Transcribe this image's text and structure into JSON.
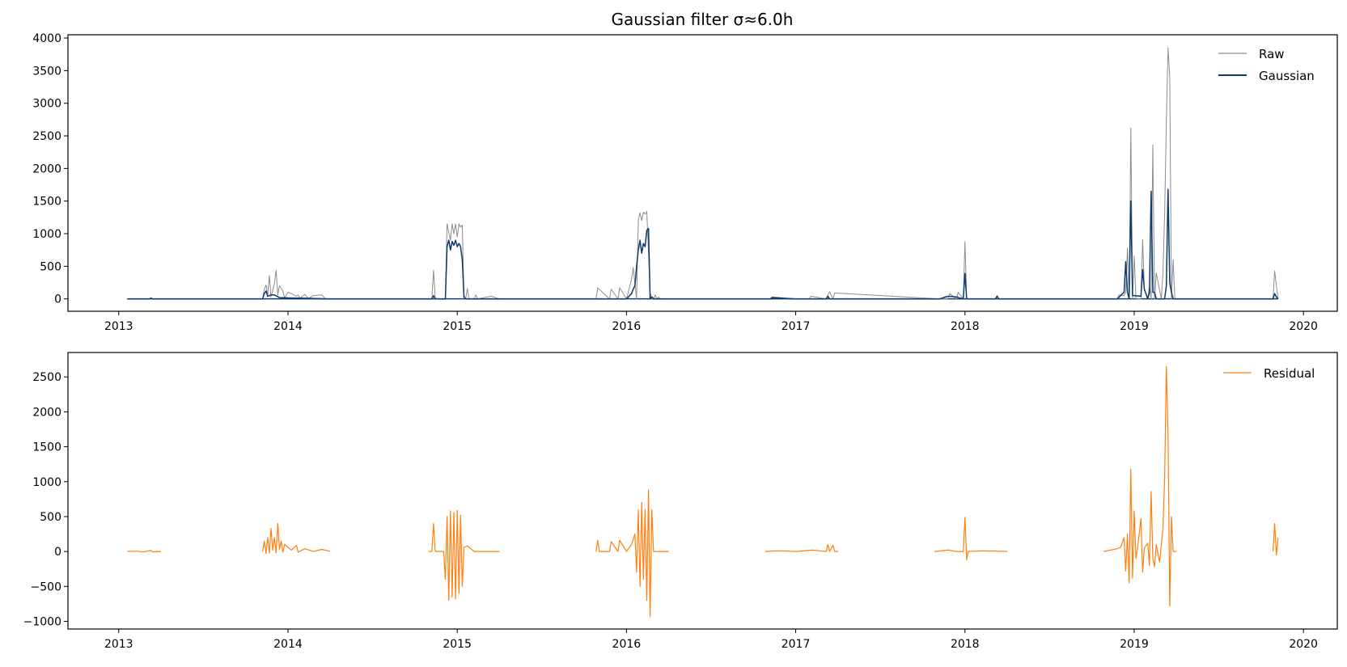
{
  "colors": {
    "raw": "#8c8c8c",
    "gaussian": "#0c3b6e",
    "residual": "#ff7f0e",
    "axis": "#000000",
    "background": "#ffffff"
  },
  "chart_data": [
    {
      "type": "line",
      "title": "Gaussian filter σ≈6.0h",
      "xlabel": "",
      "ylabel": "",
      "grid": false,
      "legend": "top-right",
      "xlim": [
        2012.7,
        2020.2
      ],
      "ylim": [
        -190,
        4050
      ],
      "xticks": [
        2013,
        2014,
        2015,
        2016,
        2017,
        2018,
        2019,
        2020
      ],
      "xtick_labels": [
        "2013",
        "2014",
        "2015",
        "2016",
        "2017",
        "2018",
        "2019",
        "2020"
      ],
      "yticks": [
        0,
        500,
        1000,
        1500,
        2000,
        2500,
        3000,
        3500,
        4000
      ],
      "ytick_labels": [
        "0",
        "500",
        "1000",
        "1500",
        "2000",
        "2500",
        "3000",
        "3500",
        "4000"
      ],
      "series": [
        {
          "name": "Raw",
          "x": [
            2013.05,
            2013.18,
            2013.19,
            2013.2,
            2013.28,
            2013.85,
            2013.86,
            2013.87,
            2013.88,
            2013.89,
            2013.9,
            2013.92,
            2013.93,
            2013.94,
            2013.95,
            2013.97,
            2013.98,
            2013.99,
            2014.0,
            2014.02,
            2014.05,
            2014.06,
            2014.07,
            2014.1,
            2014.12,
            2014.15,
            2014.2,
            2014.22,
            2014.25,
            2014.85,
            2014.86,
            2014.87,
            2014.9,
            2014.93,
            2014.94,
            2014.96,
            2014.97,
            2014.98,
            2014.99,
            2015.0,
            2015.01,
            2015.02,
            2015.03,
            2015.04,
            2015.05,
            2015.06,
            2015.07,
            2015.1,
            2015.11,
            2015.12,
            2015.2,
            2015.25,
            2015.82,
            2015.83,
            2015.9,
            2015.91,
            2015.95,
            2015.96,
            2016.0,
            2016.03,
            2016.04,
            2016.06,
            2016.07,
            2016.08,
            2016.09,
            2016.1,
            2016.11,
            2016.12,
            2016.13,
            2016.14,
            2016.15,
            2016.16,
            2016.17,
            2016.18,
            2016.19,
            2016.2,
            2016.25,
            2016.85,
            2016.86,
            2017.0,
            2017.08,
            2017.09,
            2017.18,
            2017.19,
            2017.2,
            2017.22,
            2017.23,
            2017.85,
            2017.9,
            2017.91,
            2017.95,
            2017.96,
            2017.99,
            2018.0,
            2018.01,
            2018.02,
            2018.18,
            2018.19,
            2018.2,
            2018.85,
            2018.9,
            2018.91,
            2018.94,
            2018.95,
            2018.96,
            2018.97,
            2018.98,
            2018.99,
            2019.0,
            2019.01,
            2019.04,
            2019.05,
            2019.06,
            2019.08,
            2019.09,
            2019.1,
            2019.11,
            2019.12,
            2019.13,
            2019.16,
            2019.17,
            2019.18,
            2019.19,
            2019.2,
            2019.21,
            2019.22,
            2019.23,
            2019.24,
            2019.25,
            2019.3,
            2019.82,
            2019.83,
            2019.84,
            2019.85
          ],
          "y": [
            0,
            0,
            20,
            0,
            0,
            0,
            150,
            210,
            50,
            360,
            30,
            230,
            440,
            60,
            200,
            120,
            10,
            60,
            100,
            80,
            40,
            60,
            10,
            70,
            5,
            50,
            60,
            5,
            0,
            0,
            440,
            10,
            0,
            0,
            1150,
            900,
            1150,
            1000,
            1150,
            950,
            1150,
            1100,
            1130,
            50,
            0,
            160,
            0,
            0,
            60,
            0,
            40,
            0,
            0,
            170,
            0,
            150,
            0,
            170,
            0,
            300,
            480,
            0,
            1200,
            1320,
            1200,
            1330,
            1300,
            1340,
            700,
            100,
            0,
            0,
            60,
            0,
            30,
            0,
            0,
            0,
            30,
            0,
            0,
            40,
            0,
            60,
            110,
            0,
            90,
            0,
            0,
            80,
            0,
            100,
            0,
            880,
            0,
            0,
            0,
            50,
            0,
            0,
            0,
            60,
            50,
            100,
            780,
            0,
            2620,
            0,
            660,
            0,
            0,
            910,
            150,
            0,
            200,
            0,
            2360,
            0,
            400,
            0,
            400,
            1300,
            2700,
            3850,
            3400,
            0,
            600,
            0,
            0,
            0,
            0,
            430,
            200,
            0
          ]
        },
        {
          "name": "Gaussian",
          "x": [
            2013.05,
            2013.18,
            2013.19,
            2013.2,
            2013.28,
            2013.85,
            2013.86,
            2013.87,
            2013.88,
            2013.9,
            2013.92,
            2013.95,
            2014.0,
            2014.1,
            2014.25,
            2014.85,
            2014.86,
            2014.87,
            2014.93,
            2014.94,
            2014.95,
            2014.96,
            2014.97,
            2014.98,
            2014.99,
            2015.0,
            2015.01,
            2015.02,
            2015.03,
            2015.04,
            2015.05,
            2015.1,
            2015.9,
            2016.0,
            2016.03,
            2016.04,
            2016.05,
            2016.06,
            2016.07,
            2016.08,
            2016.09,
            2016.1,
            2016.11,
            2016.12,
            2016.13,
            2016.14,
            2016.15,
            2016.16,
            2016.2,
            2016.85,
            2016.86,
            2017.0,
            2017.18,
            2017.19,
            2017.2,
            2017.85,
            2017.9,
            2017.95,
            2017.99,
            2018.0,
            2018.01,
            2018.02,
            2018.18,
            2018.19,
            2018.2,
            2018.9,
            2018.94,
            2018.95,
            2018.96,
            2018.97,
            2018.98,
            2018.99,
            2019.0,
            2019.04,
            2019.05,
            2019.06,
            2019.08,
            2019.09,
            2019.1,
            2019.11,
            2019.12,
            2019.13,
            2019.18,
            2019.19,
            2019.2,
            2019.21,
            2019.22,
            2019.23,
            2019.3,
            2019.82,
            2019.83,
            2019.84,
            2019.85
          ],
          "y": [
            0,
            0,
            10,
            0,
            0,
            0,
            80,
            120,
            40,
            60,
            60,
            20,
            15,
            10,
            0,
            0,
            50,
            0,
            0,
            800,
            900,
            750,
            880,
            820,
            900,
            800,
            850,
            800,
            600,
            30,
            0,
            0,
            0,
            0,
            80,
            150,
            200,
            500,
            750,
            900,
            700,
            850,
            800,
            1050,
            1080,
            0,
            30,
            0,
            0,
            0,
            20,
            0,
            0,
            40,
            0,
            0,
            40,
            30,
            0,
            390,
            0,
            0,
            0,
            40,
            0,
            0,
            100,
            570,
            100,
            0,
            1500,
            50,
            50,
            40,
            450,
            150,
            0,
            100,
            1650,
            100,
            100,
            0,
            0,
            200,
            1680,
            250,
            100,
            0,
            0,
            0,
            80,
            30,
            0
          ]
        }
      ]
    },
    {
      "type": "line",
      "title": "",
      "xlabel": "",
      "ylabel": "",
      "grid": false,
      "legend": "top-right",
      "xlim": [
        2012.7,
        2020.2
      ],
      "ylim": [
        -1110,
        2850
      ],
      "xticks": [
        2013,
        2014,
        2015,
        2016,
        2017,
        2018,
        2019,
        2020
      ],
      "xtick_labels": [
        "2013",
        "2014",
        "2015",
        "2016",
        "2017",
        "2018",
        "2019",
        "2020"
      ],
      "yticks": [
        -1000,
        -500,
        0,
        500,
        1000,
        1500,
        2000,
        2500
      ],
      "ytick_labels": [
        "−1000",
        "−500",
        "0",
        "500",
        "1000",
        "1500",
        "2000",
        "2500"
      ],
      "segments": [
        {
          "x": [
            2013.05,
            2013.1,
            2013.15,
            2013.19,
            2013.2,
            2013.25
          ],
          "y": [
            0,
            5,
            -5,
            15,
            -5,
            0
          ]
        },
        {
          "x": [
            2013.85,
            2013.86,
            2013.87,
            2013.88,
            2013.89,
            2013.9,
            2013.91,
            2013.92,
            2013.93,
            2013.94,
            2013.95,
            2013.96,
            2013.97,
            2013.98,
            2014.0,
            2014.02,
            2014.05,
            2014.06,
            2014.1,
            2014.15,
            2014.2,
            2014.25
          ],
          "y": [
            0,
            150,
            -30,
            200,
            -20,
            330,
            20,
            200,
            -20,
            400,
            30,
            150,
            -10,
            100,
            60,
            20,
            90,
            -10,
            40,
            0,
            30,
            0
          ]
        },
        {
          "x": [
            2014.83,
            2014.85,
            2014.86,
            2014.87,
            2014.92,
            2014.93,
            2014.94,
            2014.95,
            2014.96,
            2014.97,
            2014.98,
            2014.99,
            2015.0,
            2015.01,
            2015.02,
            2015.03,
            2015.04,
            2015.06,
            2015.1,
            2015.25
          ],
          "y": [
            0,
            0,
            400,
            0,
            0,
            -400,
            500,
            -700,
            580,
            -650,
            560,
            -680,
            590,
            -600,
            520,
            -500,
            60,
            80,
            0,
            0
          ]
        },
        {
          "x": [
            2015.82,
            2015.83,
            2015.84,
            2015.9,
            2015.91,
            2015.95,
            2015.96,
            2016.0,
            2016.03,
            2016.05,
            2016.06,
            2016.07,
            2016.08,
            2016.09,
            2016.1,
            2016.11,
            2016.12,
            2016.13,
            2016.14,
            2016.15,
            2016.16,
            2016.2,
            2016.25
          ],
          "y": [
            0,
            160,
            0,
            0,
            140,
            0,
            160,
            0,
            100,
            250,
            -300,
            600,
            -500,
            700,
            -400,
            600,
            -700,
            880,
            -930,
            600,
            0,
            0,
            0
          ]
        },
        {
          "x": [
            2016.82,
            2016.9,
            2017.0,
            2017.1,
            2017.18,
            2017.19,
            2017.2,
            2017.22,
            2017.23,
            2017.25
          ],
          "y": [
            0,
            10,
            0,
            20,
            0,
            100,
            0,
            90,
            0,
            0
          ]
        },
        {
          "x": [
            2017.82,
            2017.9,
            2017.95,
            2017.99,
            2018.0,
            2018.01,
            2018.02,
            2018.1,
            2018.25
          ],
          "y": [
            0,
            20,
            0,
            0,
            490,
            -120,
            0,
            10,
            0
          ]
        },
        {
          "x": [
            2018.82,
            2018.9,
            2018.92,
            2018.94,
            2018.95,
            2018.96,
            2018.97,
            2018.98,
            2018.99,
            2019.0,
            2019.01,
            2019.02,
            2019.04,
            2019.05,
            2019.06,
            2019.08,
            2019.09,
            2019.1,
            2019.11,
            2019.12,
            2019.13,
            2019.15,
            2019.17,
            2019.18,
            2019.19,
            2019.2,
            2019.21,
            2019.22,
            2019.23,
            2019.25
          ],
          "y": [
            0,
            40,
            60,
            200,
            -280,
            250,
            -450,
            1180,
            -380,
            580,
            -100,
            50,
            470,
            -300,
            50,
            120,
            -200,
            860,
            -100,
            -220,
            100,
            -150,
            330,
            1050,
            2650,
            1700,
            -780,
            500,
            0,
            0
          ]
        },
        {
          "x": [
            2019.82,
            2019.83,
            2019.84,
            2019.85
          ],
          "y": [
            0,
            400,
            -50,
            200
          ]
        }
      ],
      "series": [
        {
          "name": "Residual"
        }
      ]
    }
  ]
}
